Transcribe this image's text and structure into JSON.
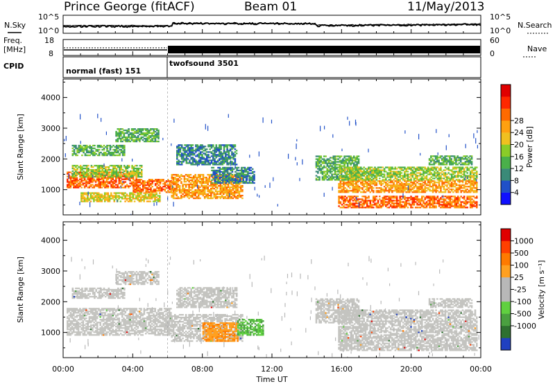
{
  "header": {
    "station": "Prince George (fitACF)",
    "beam": "Beam 01",
    "date": "11/May/2013"
  },
  "strips": {
    "nsky_label": "N.Sky",
    "nsearch_label": "N.Search",
    "noise_ticks": [
      "10^5",
      "10^0"
    ],
    "freq_label_top": "Freq.",
    "freq_label_unit": "[MHz]",
    "freq_ticks": [
      "18",
      "8"
    ],
    "nave_label": "Nave",
    "nave_ticks": [
      "60",
      "0"
    ],
    "cpid_label": "CPID",
    "cpid_segments": [
      {
        "name": "normal (fast) 151",
        "start_hour": 0,
        "end_hour": 6
      },
      {
        "name": "twofsound 3501",
        "start_hour": 6,
        "end_hour": 24
      }
    ]
  },
  "chart_data": [
    {
      "type": "heatmap",
      "title": "Power",
      "xlabel": "",
      "ylabel": "Slant Range [km]",
      "xlim": [
        0,
        24
      ],
      "ylim": [
        180,
        4600
      ],
      "yticks": [
        "1000",
        "2000",
        "3000",
        "4000"
      ],
      "colorbar": {
        "label": "Power [dB]",
        "ticks": [
          "4",
          "8",
          "12",
          "16",
          "20",
          "24",
          "28"
        ],
        "colors": [
          "#1010ff",
          "#2050c8",
          "#3a8a78",
          "#4ab04a",
          "#8acc28",
          "#f0c020",
          "#ffa010",
          "#ff6a00",
          "#ff2800",
          "#e00000"
        ]
      },
      "bands": [
        {
          "t": [
            0.2,
            4.2
          ],
          "r": [
            1050,
            1550
          ],
          "level": 7
        },
        {
          "t": [
            4.0,
            6.2
          ],
          "r": [
            900,
            1350
          ],
          "level": 7
        },
        {
          "t": [
            6.2,
            10.3
          ],
          "r": [
            700,
            1500
          ],
          "level": 6
        },
        {
          "t": [
            1.0,
            5.5
          ],
          "r": [
            600,
            900
          ],
          "level": 5
        },
        {
          "t": [
            0.5,
            4.5
          ],
          "r": [
            1400,
            1800
          ],
          "level": 4
        },
        {
          "t": [
            0.5,
            3.5
          ],
          "r": [
            2100,
            2450
          ],
          "level": 3
        },
        {
          "t": [
            3.0,
            5.5
          ],
          "r": [
            2550,
            3000
          ],
          "level": 3
        },
        {
          "t": [
            6.5,
            10.0
          ],
          "r": [
            1800,
            2450
          ],
          "level": 2
        },
        {
          "t": [
            8.5,
            11.0
          ],
          "r": [
            1200,
            1700
          ],
          "level": 2
        },
        {
          "t": [
            14.5,
            17.0
          ],
          "r": [
            1300,
            2100
          ],
          "level": 3
        },
        {
          "t": [
            15.8,
            23.8
          ],
          "r": [
            900,
            1300
          ],
          "level": 6
        },
        {
          "t": [
            15.8,
            23.8
          ],
          "r": [
            400,
            800
          ],
          "level": 7
        },
        {
          "t": [
            15.8,
            23.8
          ],
          "r": [
            1300,
            1750
          ],
          "level": 4
        },
        {
          "t": [
            21.0,
            23.5
          ],
          "r": [
            1800,
            2100
          ],
          "level": 3
        }
      ]
    },
    {
      "type": "heatmap",
      "title": "Velocity",
      "xlabel": "Time UT",
      "ylabel": "Slant Range [km]",
      "xlim": [
        0,
        24
      ],
      "ylim": [
        180,
        4600
      ],
      "xticks": [
        "00:00",
        "04:00",
        "08:00",
        "12:00",
        "16:00",
        "20:00",
        "00:00"
      ],
      "yticks": [
        "1000",
        "2000",
        "3000",
        "4000"
      ],
      "colorbar": {
        "label": "Velocity [m s⁻¹]",
        "ticks": [
          "1000",
          "500",
          "100",
          "25",
          "-25",
          "-100",
          "-500",
          "-1000"
        ],
        "colors": [
          "#2040c0",
          "#2e7030",
          "#4aa040",
          "#60d040",
          "#b8b8b8",
          "#b8b8b8",
          "#ffa020",
          "#ff7a00",
          "#ff4000",
          "#e00000"
        ]
      },
      "bands": [
        {
          "t": [
            0.2,
            6.2
          ],
          "r": [
            900,
            1800
          ],
          "v": 0
        },
        {
          "t": [
            0.5,
            3.5
          ],
          "r": [
            2100,
            2450
          ],
          "v": 0
        },
        {
          "t": [
            3.0,
            5.5
          ],
          "r": [
            2550,
            3000
          ],
          "v": 0
        },
        {
          "t": [
            6.2,
            10.3
          ],
          "r": [
            700,
            1600
          ],
          "v": 0
        },
        {
          "t": [
            6.5,
            10.0
          ],
          "r": [
            1800,
            2450
          ],
          "v": 0
        },
        {
          "t": [
            8.0,
            10.0
          ],
          "r": [
            700,
            1300
          ],
          "v": -300
        },
        {
          "t": [
            10.0,
            11.5
          ],
          "r": [
            900,
            1400
          ],
          "v": 80
        },
        {
          "t": [
            14.5,
            17.0
          ],
          "r": [
            1300,
            2100
          ],
          "v": 0
        },
        {
          "t": [
            15.8,
            23.8
          ],
          "r": [
            400,
            1750
          ],
          "v": 0
        },
        {
          "t": [
            21.0,
            23.5
          ],
          "r": [
            1800,
            2100
          ],
          "v": 0
        }
      ]
    }
  ]
}
